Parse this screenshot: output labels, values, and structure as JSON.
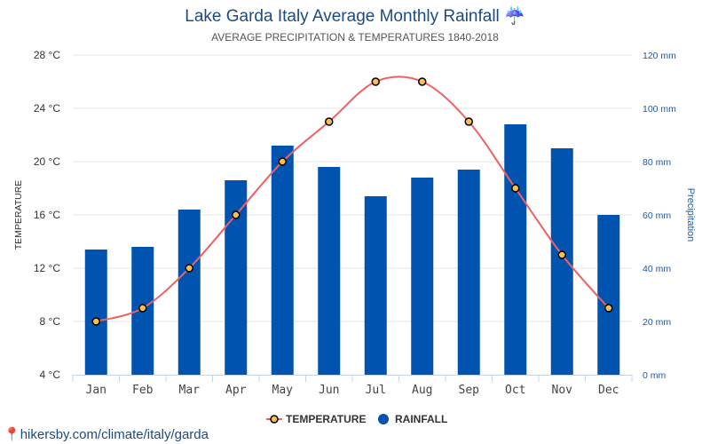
{
  "chart_data": {
    "type": "bar",
    "title": "Lake Garda Italy Average Monthly Rainfall",
    "title_icon": "umbrella-rain-icon",
    "subtitle": "AVERAGE PRECIPITATION & TEMPERATURES 1840-2018",
    "categories": [
      "Jan",
      "Feb",
      "Mar",
      "Apr",
      "May",
      "Jun",
      "Jul",
      "Aug",
      "Sep",
      "Oct",
      "Nov",
      "Dec"
    ],
    "series": [
      {
        "name": "TEMPERATURE",
        "type": "line",
        "axis": "left",
        "color": "#f06060",
        "marker_color": "#f8c050",
        "values": [
          8,
          9,
          12,
          16,
          20,
          23,
          26,
          26,
          23,
          18,
          13,
          9
        ]
      },
      {
        "name": "RAINFALL",
        "type": "bar",
        "axis": "right",
        "color": "#0054b0",
        "values": [
          47,
          48,
          62,
          73,
          86,
          78,
          67,
          74,
          77,
          94,
          85,
          60
        ]
      }
    ],
    "left_axis": {
      "label": "TEMPERATURE",
      "range": [
        4,
        28
      ],
      "ticks": [
        "4 °C",
        "8 °C",
        "12 °C",
        "16 °C",
        "20 °C",
        "24 °C",
        "28 °C"
      ]
    },
    "right_axis": {
      "label": "Precipitation",
      "range": [
        0,
        120
      ],
      "ticks": [
        "0 mm",
        "20 mm",
        "40 mm",
        "60 mm",
        "80 mm",
        "100 mm",
        "120 mm"
      ]
    },
    "grid": true,
    "legend_placement": "bottom"
  },
  "footer": {
    "link": "hikersby.com/climate/italy/garda"
  }
}
